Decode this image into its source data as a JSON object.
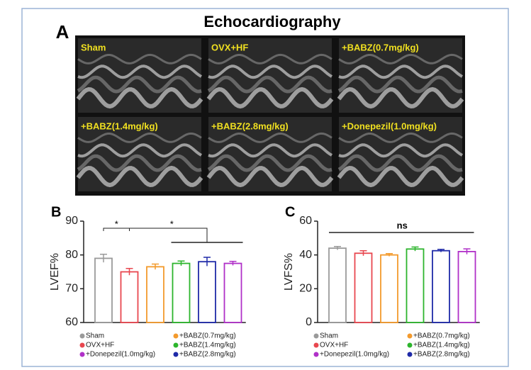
{
  "figure": {
    "title": "Echocardiography",
    "panel_label": "A",
    "images": [
      "Sham",
      "OVX+HF",
      "+BABZ(0.7mg/kg)",
      "+BABZ(1.4mg/kg)",
      "+BABZ(2.8mg/kg)",
      "+Donepezil(1.0mg/kg)"
    ]
  },
  "chart_data": [
    {
      "type": "bar",
      "panel_label": "B",
      "y_label": "LVEF%",
      "ylim": [
        60,
        90
      ],
      "yticks": [
        60,
        70,
        80,
        90
      ],
      "annotations": [
        "*",
        "*"
      ],
      "series": [
        {
          "name": "Sham",
          "color": "#9a9a9a",
          "values": [
            79
          ],
          "errors": [
            1.2
          ]
        },
        {
          "name": "OVX+HF",
          "color": "#e8474f",
          "values": [
            75
          ],
          "errors": [
            1
          ]
        },
        {
          "name": "+BABZ(0.7mg/kg)",
          "color": "#f39a2c",
          "values": [
            76.5
          ],
          "errors": [
            0.8
          ]
        },
        {
          "name": "+BABZ(1.4mg/kg)",
          "color": "#2db52d",
          "values": [
            77.5
          ],
          "errors": [
            0.7
          ]
        },
        {
          "name": "+BABZ(2.8mg/kg)",
          "color": "#1f2aa8",
          "values": [
            78
          ],
          "errors": [
            1.3
          ]
        },
        {
          "name": "+Donepezil(1.0mg/kg)",
          "color": "#b030c8",
          "values": [
            77.5
          ],
          "errors": [
            0.6
          ]
        }
      ]
    },
    {
      "type": "bar",
      "panel_label": "C",
      "y_label": "LVFS%",
      "ylim": [
        0,
        60
      ],
      "yticks": [
        0,
        20,
        40,
        60
      ],
      "annotations": [
        "ns"
      ],
      "series": [
        {
          "name": "Sham",
          "color": "#9a9a9a",
          "values": [
            44
          ],
          "errors": [
            1
          ]
        },
        {
          "name": "OVX+HF",
          "color": "#e8474f",
          "values": [
            41
          ],
          "errors": [
            1.5
          ]
        },
        {
          "name": "+BABZ(0.7mg/kg)",
          "color": "#f39a2c",
          "values": [
            40
          ],
          "errors": [
            0.8
          ]
        },
        {
          "name": "+BABZ(1.4mg/kg)",
          "color": "#2db52d",
          "values": [
            43.5
          ],
          "errors": [
            1.2
          ]
        },
        {
          "name": "+BABZ(2.8mg/kg)",
          "color": "#1f2aa8",
          "values": [
            42.5
          ],
          "errors": [
            0.8
          ]
        },
        {
          "name": "+Donepezil(1.0mg/kg)",
          "color": "#b030c8",
          "values": [
            42
          ],
          "errors": [
            1.6
          ]
        }
      ]
    }
  ]
}
